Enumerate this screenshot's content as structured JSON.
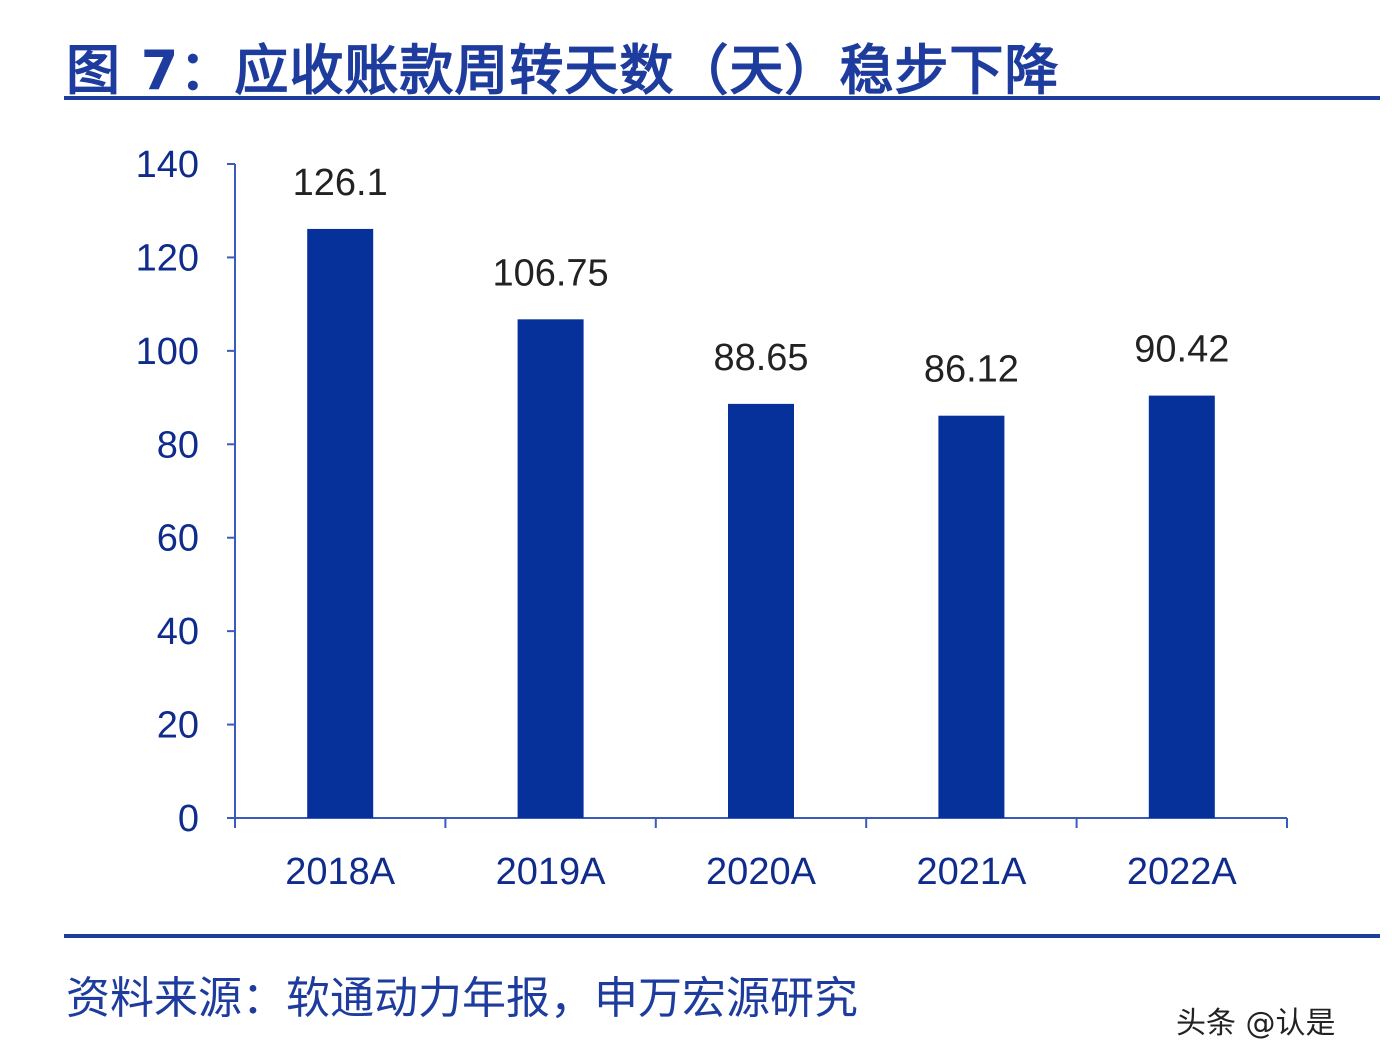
{
  "title": "图 7：应收账款周转天数（天）稳步下降",
  "source": "资料来源：软通动力年报，申万宏源研究",
  "watermark": "头条 @认是",
  "colors": {
    "bar": "#06309a",
    "title": "#1d3c9e",
    "axis": "#3a5bbd"
  },
  "chart_data": {
    "type": "bar",
    "title": "",
    "xlabel": "",
    "ylabel": "",
    "categories": [
      "2018A",
      "2019A",
      "2020A",
      "2021A",
      "2022A"
    ],
    "values": [
      126.1,
      106.75,
      88.65,
      86.12,
      90.42
    ],
    "value_labels": [
      "126.1",
      "106.75",
      "88.65",
      "86.12",
      "90.42"
    ],
    "ylim": [
      0,
      140
    ],
    "yticks": [
      0,
      20,
      40,
      60,
      80,
      100,
      120,
      140
    ],
    "grid": false,
    "legend": "none"
  }
}
